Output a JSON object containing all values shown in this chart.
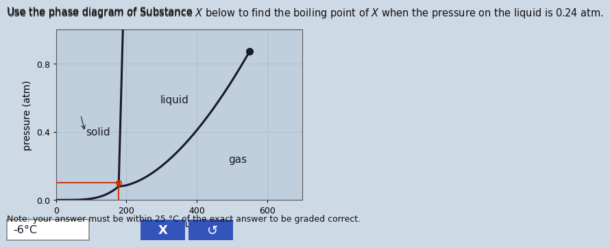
{
  "title_part1": "Use the phase diagram of Substance ",
  "title_X": "X",
  "title_part2": " below to find the boiling point of ",
  "title_X2": "X",
  "title_part3": " when the pressure on the liquid is 0.24 atm.",
  "xlabel": "temperature (K)",
  "ylabel": "pressure (atm)",
  "note": "Note: your answer must be within 25 °C of the exact answer to be graded correct.",
  "answer": "-6°C",
  "xlim": [
    0,
    700
  ],
  "ylim": [
    0,
    1.0
  ],
  "xticks": [
    0,
    200,
    400,
    600
  ],
  "yticks": [
    0.0,
    0.4,
    0.8
  ],
  "triple_point": [
    178,
    0.08
  ],
  "critical_point": [
    550,
    0.87
  ],
  "red_line_pressure": 0.1,
  "red_line_T_intersection": 178,
  "bg_color": "#cdd9e5",
  "plot_bg_color": "#c0cfde",
  "grid_color": "#aabdcf",
  "line_color": "#1a1a2e",
  "red_color": "#cc3300",
  "label_solid": "solid",
  "label_liquid": "liquid",
  "label_gas": "gas",
  "label_fontsize": 11,
  "axis_fontsize": 10,
  "title_fontsize": 10.5
}
